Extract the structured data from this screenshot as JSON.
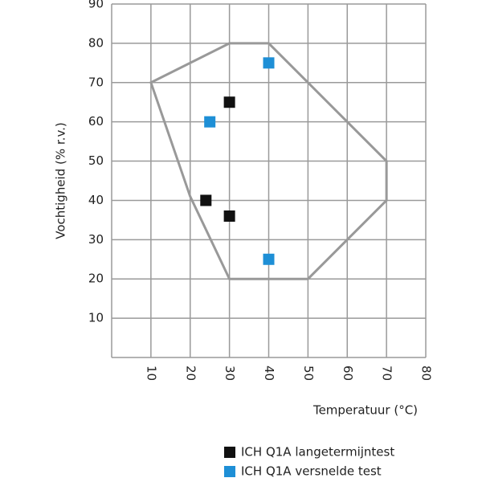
{
  "chart_data": {
    "type": "scatter",
    "x_label": "Temperatuur (°C)",
    "y_label": "Vochtigheid (% r.v.)",
    "xlim": [
      0,
      80
    ],
    "ylim": [
      0,
      90
    ],
    "xticks": [
      10,
      20,
      30,
      40,
      50,
      60,
      70,
      80
    ],
    "yticks": [
      10,
      20,
      30,
      40,
      50,
      60,
      70,
      80,
      90
    ],
    "grid": true,
    "envelope": {
      "color": "#999999",
      "x": [
        10,
        30,
        40,
        70,
        70,
        50,
        30,
        20
      ],
      "y": [
        70,
        80,
        80,
        50,
        40,
        20,
        20,
        41
      ]
    },
    "series": [
      {
        "name": "ICH Q1A langetermijntest",
        "color": "#111111",
        "x": [
          30,
          24,
          30
        ],
        "values": [
          65,
          40,
          36
        ]
      },
      {
        "name": "ICH Q1A versnelde test",
        "color": "#1e8fd6",
        "x": [
          40,
          25,
          40
        ],
        "values": [
          75,
          60,
          25
        ]
      }
    ]
  }
}
